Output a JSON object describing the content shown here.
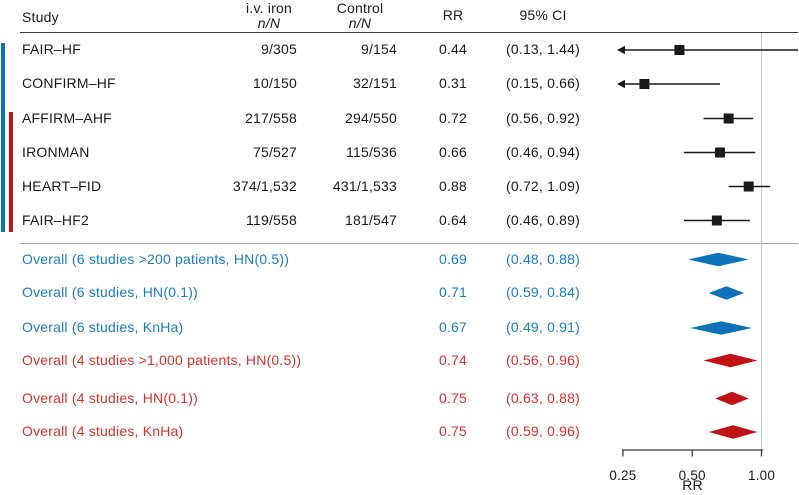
{
  "colors": {
    "blue": "#0E72B9",
    "blue_text": "#1B7AC8",
    "red": "#C31215",
    "red_text": "#D3322E",
    "black": "#1A1A1A",
    "grid_line": "#CBCBCB",
    "axis": "#3C3C3C",
    "header_rule": "#3C3C3C",
    "separator_rule": "#A8A8A8"
  },
  "chart_data": {
    "type": "forest",
    "scale": "log",
    "columns": {
      "study": "Study",
      "iv": [
        "i.v. iron",
        "n/N"
      ],
      "control": [
        "Control",
        "n/N"
      ],
      "rr": "RR",
      "ci": "95% CI"
    },
    "x_axis": {
      "label": "RR",
      "ticks": [
        {
          "value": 0.25,
          "label": "0.25"
        },
        {
          "value": 0.5,
          "label": "0.50"
        },
        {
          "value": 1.0,
          "label": "1.00"
        }
      ],
      "min_displayed": 0.25
    },
    "group_bars": [
      {
        "name": "six-study-group",
        "color_key": "blue"
      },
      {
        "name": "four-study-group",
        "color_key": "red"
      }
    ],
    "studies": [
      {
        "name": "FAIR–HF",
        "iv_n": "9/305",
        "control_n": "9/154",
        "rr": 0.44,
        "rr_label": "0.44",
        "ci_low": 0.13,
        "ci_high": 1.44,
        "ci_label": "(0.13, 1.44)"
      },
      {
        "name": "CONFIRM–HF",
        "iv_n": "10/150",
        "control_n": "32/151",
        "rr": 0.31,
        "rr_label": "0.31",
        "ci_low": 0.15,
        "ci_high": 0.66,
        "ci_label": "(0.15, 0.66)"
      },
      {
        "name": "AFFIRM–AHF",
        "iv_n": "217/558",
        "control_n": "294/550",
        "rr": 0.72,
        "rr_label": "0.72",
        "ci_low": 0.56,
        "ci_high": 0.92,
        "ci_label": "(0.56, 0.92)"
      },
      {
        "name": "IRONMAN",
        "iv_n": "75/527",
        "control_n": "115/536",
        "rr": 0.66,
        "rr_label": "0.66",
        "ci_low": 0.46,
        "ci_high": 0.94,
        "ci_label": "(0.46, 0.94)"
      },
      {
        "name": "HEART–FID",
        "iv_n": "374/1,532",
        "control_n": "431/1,533",
        "rr": 0.88,
        "rr_label": "0.88",
        "ci_low": 0.72,
        "ci_high": 1.09,
        "ci_label": "(0.72, 1.09)"
      },
      {
        "name": "FAIR–HF2",
        "iv_n": "119/558",
        "control_n": "181/547",
        "rr": 0.64,
        "rr_label": "0.64",
        "ci_low": 0.46,
        "ci_high": 0.89,
        "ci_label": "(0.46, 0.89)"
      }
    ],
    "overalls": [
      {
        "label": "Overall (6 studies >200 patients, HN(0.5))",
        "rr": 0.69,
        "rr_label": "0.69",
        "ci_low": 0.48,
        "ci_high": 0.88,
        "ci_label": "(0.48, 0.88)",
        "group": "blue"
      },
      {
        "label": "Overall (6 studies, HN(0.1))",
        "rr": 0.71,
        "rr_label": "0.71",
        "ci_low": 0.59,
        "ci_high": 0.84,
        "ci_label": "(0.59, 0.84)",
        "group": "blue"
      },
      {
        "label": "Overall (6 studies, KnHa)",
        "rr": 0.67,
        "rr_label": "0.67",
        "ci_low": 0.49,
        "ci_high": 0.91,
        "ci_label": "(0.49, 0.91)",
        "group": "blue"
      },
      {
        "label": "Overall (4 studies >1,000 patients, HN(0.5))",
        "rr": 0.74,
        "rr_label": "0.74",
        "ci_low": 0.56,
        "ci_high": 0.96,
        "ci_label": "(0.56, 0.96)",
        "group": "red"
      },
      {
        "label": "Overall (4 studies, HN(0.1))",
        "rr": 0.75,
        "rr_label": "0.75",
        "ci_low": 0.63,
        "ci_high": 0.88,
        "ci_label": "(0.63, 0.88)",
        "group": "red"
      },
      {
        "label": "Overall (4 studies, KnHa)",
        "rr": 0.75,
        "rr_label": "0.75",
        "ci_low": 0.59,
        "ci_high": 0.96,
        "ci_label": "(0.59, 0.96)",
        "group": "red"
      }
    ]
  }
}
